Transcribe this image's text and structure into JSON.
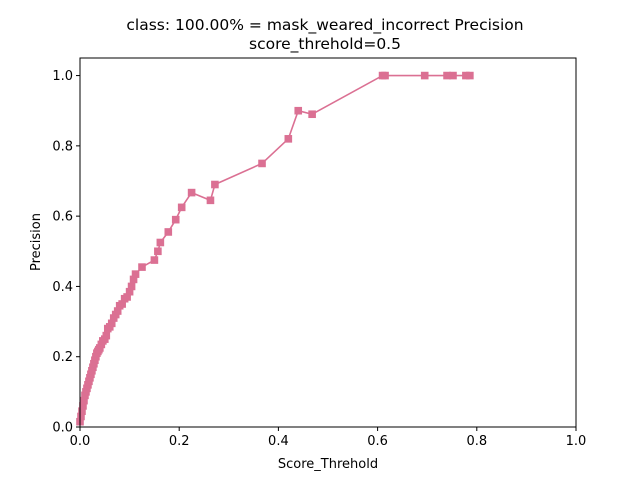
{
  "chart_data": {
    "type": "line",
    "title": "class: 100.00% = mask_weared_incorrect Precision",
    "subtitle": "score_threhold=0.5",
    "xlabel": "Score_Threhold",
    "ylabel": "Precision",
    "xlim": [
      0.0,
      1.0
    ],
    "ylim": [
      0.0,
      1.05
    ],
    "xticks": [
      "0.0",
      "0.2",
      "0.4",
      "0.6",
      "0.8",
      "1.0"
    ],
    "yticks": [
      "0.0",
      "0.2",
      "0.4",
      "0.6",
      "0.8",
      "1.0"
    ],
    "grid": false,
    "marker": "square",
    "color": "#db7093",
    "series": [
      {
        "x": [
          0.0,
          0.002,
          0.004,
          0.006,
          0.008,
          0.01,
          0.012,
          0.014,
          0.016,
          0.018,
          0.02,
          0.022,
          0.024,
          0.026,
          0.028,
          0.03,
          0.032,
          0.034,
          0.036,
          0.038,
          0.04,
          0.043,
          0.046,
          0.05,
          0.053,
          0.056,
          0.06,
          0.064,
          0.068,
          0.072,
          0.076,
          0.08,
          0.085,
          0.09,
          0.095,
          0.1,
          0.104,
          0.108,
          0.112,
          0.125,
          0.15,
          0.157,
          0.162,
          0.178,
          0.193,
          0.205,
          0.225,
          0.263,
          0.272,
          0.367,
          0.42,
          0.44,
          0.468,
          0.61,
          0.615,
          0.695,
          0.74,
          0.752,
          0.778,
          0.786
        ],
        "y": [
          0.015,
          0.03,
          0.045,
          0.06,
          0.075,
          0.09,
          0.1,
          0.11,
          0.12,
          0.13,
          0.14,
          0.15,
          0.16,
          0.17,
          0.18,
          0.19,
          0.2,
          0.21,
          0.215,
          0.22,
          0.225,
          0.235,
          0.245,
          0.25,
          0.26,
          0.28,
          0.285,
          0.295,
          0.31,
          0.32,
          0.33,
          0.345,
          0.35,
          0.365,
          0.37,
          0.385,
          0.4,
          0.42,
          0.435,
          0.455,
          0.475,
          0.5,
          0.525,
          0.555,
          0.59,
          0.625,
          0.667,
          0.645,
          0.69,
          0.75,
          0.82,
          0.9,
          0.89,
          1.0,
          1.0,
          1.0,
          1.0,
          1.0,
          1.0,
          1.0
        ]
      }
    ]
  }
}
